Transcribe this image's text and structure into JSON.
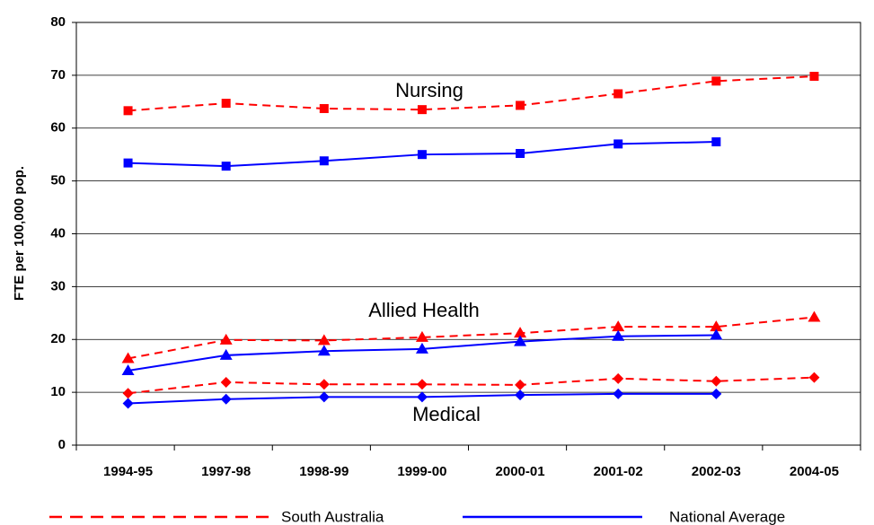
{
  "chart_data": {
    "type": "line",
    "y_label": "FTE per 100,000 pop.",
    "categories": [
      "1994-95",
      "1997-98",
      "1998-99",
      "1999-00",
      "2000-01",
      "2001-02",
      "2002-03",
      "2004-05"
    ],
    "series": [
      {
        "color": "#ff0000",
        "dash": true,
        "marker": "square",
        "values": [
          63.3,
          64.7,
          63.7,
          63.5,
          64.3,
          66.5,
          68.9,
          69.8
        ]
      },
      {
        "color": "#0000ff",
        "dash": false,
        "marker": "square",
        "values": [
          53.4,
          52.8,
          53.8,
          55.0,
          55.2,
          57.0,
          57.4,
          null
        ]
      },
      {
        "color": "#ff0000",
        "dash": true,
        "marker": "triangle",
        "values": [
          16.4,
          19.9,
          19.8,
          20.4,
          21.2,
          22.4,
          22.4,
          24.2
        ]
      },
      {
        "color": "#0000ff",
        "dash": false,
        "marker": "triangle",
        "values": [
          14.1,
          17.0,
          17.8,
          18.2,
          19.6,
          20.6,
          20.8,
          null
        ]
      },
      {
        "color": "#ff0000",
        "dash": true,
        "marker": "diamond",
        "values": [
          9.8,
          11.9,
          11.5,
          11.5,
          11.4,
          12.6,
          12.1,
          12.8
        ]
      },
      {
        "color": "#0000ff",
        "dash": false,
        "marker": "diamond",
        "values": [
          7.9,
          8.7,
          9.1,
          9.1,
          9.5,
          9.7,
          9.7,
          null
        ]
      }
    ],
    "legend": [
      {
        "name": "South Australia",
        "color": "#ff0000",
        "dash": true
      },
      {
        "name": "National Average",
        "color": "#0000ff",
        "dash": false
      }
    ],
    "annotations": [
      "Nursing",
      "Allied Health",
      "Medical"
    ],
    "ylim": [
      0,
      80
    ],
    "yticks": [
      0,
      10,
      20,
      30,
      40,
      50,
      60,
      70,
      80
    ],
    "grid": true
  }
}
